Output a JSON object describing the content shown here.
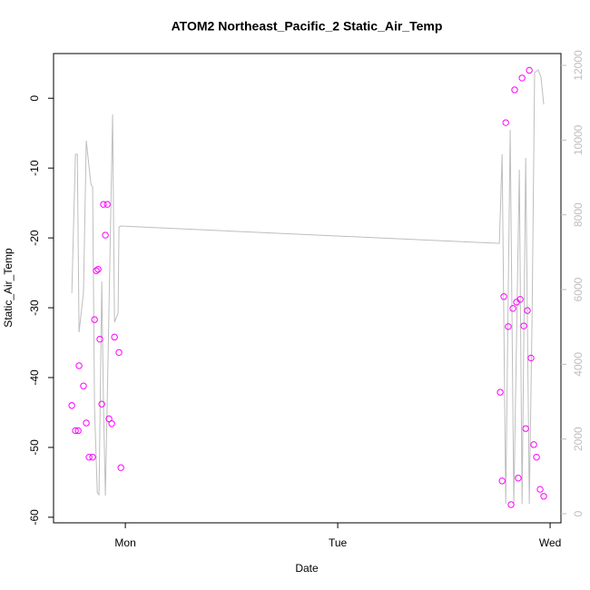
{
  "chart_data": {
    "type": "scatter",
    "title": "ATOM2 Northeast_Pacific_2 Static_Air_Temp",
    "x_label": "Date",
    "y_label": "Static_Air_Temp",
    "xlim": [
      -0.338,
      2.051
    ],
    "xticks": [
      {
        "value": 0,
        "label": "Mon"
      },
      {
        "value": 1,
        "label": "Tue"
      },
      {
        "value": 2,
        "label": "Wed"
      }
    ],
    "ylim": [
      -60.8,
      6.4
    ],
    "yticks": [
      -60,
      -50,
      -40,
      -30,
      -20,
      -10,
      0
    ],
    "y2lim": [
      -243,
      12316
    ],
    "y2ticks": [
      0,
      2000,
      4000,
      6000,
      8000,
      10000,
      12000
    ],
    "y2_color": "#bebebe",
    "series": [
      {
        "type": "scatter",
        "color": "#ff00ff",
        "x": [
          -0.252,
          -0.235,
          -0.222,
          -0.218,
          -0.197,
          -0.184,
          -0.171,
          -0.154,
          -0.145,
          -0.137,
          -0.128,
          -0.12,
          -0.111,
          -0.103,
          -0.094,
          -0.085,
          -0.077,
          -0.064,
          -0.051,
          -0.03,
          -0.021,
          1.765,
          1.774,
          1.782,
          1.791,
          1.803,
          1.816,
          1.825,
          1.833,
          1.842,
          1.85,
          1.859,
          1.868,
          1.876,
          1.885,
          1.893,
          1.902,
          1.91,
          1.923,
          1.936,
          1.953,
          1.97
        ],
        "values": [
          -44,
          -47.6,
          -47.6,
          -38.3,
          -41.2,
          -46.5,
          -51.4,
          -51.4,
          -31.7,
          -24.7,
          -24.5,
          -34.5,
          -43.8,
          -15.2,
          -19.6,
          -15.2,
          -45.9,
          -46.6,
          -34.2,
          -36.4,
          -52.9,
          -42.1,
          -54.8,
          -28.4,
          -3.5,
          -32.7,
          -58.2,
          -30.1,
          1.2,
          -29.2,
          -54.4,
          -28.8,
          2.9,
          -32.6,
          -47.3,
          -30.4,
          4.0,
          -37.2,
          -49.6,
          -51.4,
          -56.0,
          -57.0
        ]
      },
      {
        "type": "line",
        "color": "#bebebe",
        "axis": "y2",
        "x": [
          -0.252,
          -0.235,
          -0.226,
          -0.218,
          -0.197,
          -0.184,
          -0.162,
          -0.154,
          -0.145,
          -0.132,
          -0.124,
          -0.111,
          -0.103,
          -0.094,
          -0.085,
          -0.06,
          -0.051,
          -0.034,
          -0.03,
          -0.021,
          1.752,
          1.761,
          1.774,
          1.791,
          1.812,
          1.829,
          1.855,
          1.868,
          1.885,
          1.902,
          1.915,
          1.927,
          1.944,
          1.957,
          1.97
        ],
        "values": [
          5902,
          9619,
          9619,
          4858,
          5927,
          9983,
          8817,
          8744,
          2818,
          559,
          510,
          6218,
          2939,
          486,
          3061,
          10688,
          5125,
          5368,
          7675,
          7699,
          7238,
          7238,
          9619,
          267,
          10274,
          267,
          9206,
          267,
          9522,
          267,
          5247,
          11805,
          11877,
          11683,
          10955
        ]
      }
    ]
  }
}
